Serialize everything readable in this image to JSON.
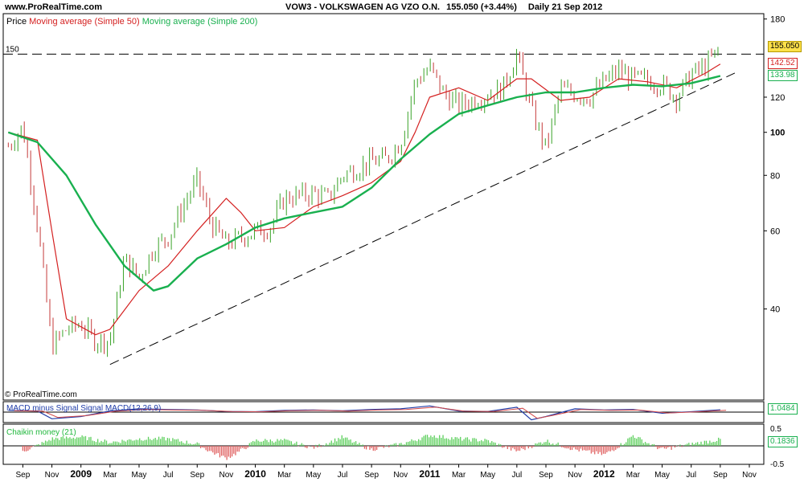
{
  "header": {
    "site": "www.ProRealTime.com",
    "title": "VOW3 - VOLKSWAGEN AG VZO O.N.",
    "change": "155.050 (+3.44%)",
    "period": "Daily  21 Sep 2012"
  },
  "legend": {
    "price": "Price",
    "ma50": "Moving average (Simple 50)",
    "ma200": "Moving average (Simple 200)"
  },
  "copyright": "© ProRealTime.com",
  "colors": {
    "ma50": "#d42020",
    "ma200": "#19b04f",
    "up": "#3aa329",
    "down": "#c43a3a",
    "macd": "#1f3ca8",
    "signal": "#d44a4a",
    "cm_pos": "#5ccf5c",
    "cm_neg": "#e06262"
  },
  "chart_data": [
    {
      "type": "line",
      "title": "VOW3 - VOLKSWAGEN AG VZO O.N.",
      "y_scale": "log",
      "ylim": [
        26,
        182
      ],
      "y_ticks": [
        "180",
        "150",
        "120",
        "100",
        "80",
        "60",
        "40"
      ],
      "x_ticks": [
        "Sep",
        "Nov",
        "2009",
        "Mar",
        "May",
        "Jul",
        "Sep",
        "Nov",
        "2010",
        "Mar",
        "May",
        "Jul",
        "Sep",
        "Nov",
        "2011",
        "Mar",
        "May",
        "Jul",
        "Sep",
        "Nov",
        "2012",
        "Mar",
        "May",
        "Jul",
        "Sep",
        "Nov"
      ],
      "x_range": [
        "2008-08",
        "2012-11"
      ],
      "series": [
        {
          "name": "Price",
          "style": "candles",
          "x": [
            "2008-08",
            "2008-09",
            "2008-10",
            "2008-11",
            "2008-12",
            "2009-01",
            "2009-02",
            "2009-03",
            "2009-04",
            "2009-05",
            "2009-06",
            "2009-07",
            "2009-08",
            "2009-09",
            "2009-10",
            "2009-11",
            "2009-12",
            "2010-01",
            "2010-02",
            "2010-03",
            "2010-04",
            "2010-05",
            "2010-06",
            "2010-07",
            "2010-08",
            "2010-09",
            "2010-10",
            "2010-11",
            "2010-12",
            "2011-01",
            "2011-02",
            "2011-03",
            "2011-04",
            "2011-05",
            "2011-06",
            "2011-07",
            "2011-08",
            "2011-09",
            "2011-10",
            "2011-11",
            "2011-12",
            "2012-01",
            "2012-02",
            "2012-03",
            "2012-04",
            "2012-05",
            "2012-06",
            "2012-07",
            "2012-08",
            "2012-09"
          ],
          "values": [
            93,
            103,
            62,
            33,
            36,
            37,
            34,
            34,
            52,
            47,
            55,
            58,
            68,
            78,
            62,
            56,
            58,
            60,
            61,
            71,
            72,
            73,
            71,
            80,
            83,
            86,
            87,
            95,
            130,
            140,
            122,
            115,
            118,
            122,
            125,
            150,
            112,
            92,
            125,
            122,
            120,
            130,
            138,
            132,
            131,
            128,
            120,
            135,
            141,
            155.05
          ]
        },
        {
          "name": "Moving average (Simple 50)",
          "x": [
            "2008-08",
            "2008-10",
            "2008-11",
            "2008-12",
            "2009-02",
            "2009-03",
            "2009-05",
            "2009-07",
            "2009-09",
            "2009-11",
            "2009-12",
            "2010-01",
            "2010-03",
            "2010-05",
            "2010-07",
            "2010-09",
            "2010-11",
            "2010-12",
            "2011-01",
            "2011-03",
            "2011-05",
            "2011-07",
            "2011-08",
            "2011-10",
            "2011-12",
            "2012-02",
            "2012-04",
            "2012-06",
            "2012-08",
            "2012-09"
          ],
          "values": [
            100,
            96,
            60,
            38,
            35,
            36,
            44,
            50,
            60,
            71,
            66,
            60,
            61,
            68,
            72,
            77,
            86,
            100,
            120,
            126,
            118,
            132,
            132,
            118,
            120,
            132,
            130,
            126,
            136,
            142.52
          ]
        },
        {
          "name": "Moving average (Simple 200)",
          "x": [
            "2008-08",
            "2008-10",
            "2008-12",
            "2009-02",
            "2009-04",
            "2009-06",
            "2009-07",
            "2009-09",
            "2009-11",
            "2010-01",
            "2010-03",
            "2010-05",
            "2010-07",
            "2010-09",
            "2010-11",
            "2011-01",
            "2011-03",
            "2011-05",
            "2011-07",
            "2011-09",
            "2011-11",
            "2012-01",
            "2012-03",
            "2012-05",
            "2012-07",
            "2012-09"
          ],
          "values": [
            100,
            95,
            80,
            62,
            50,
            44,
            45,
            52,
            56,
            61,
            64,
            66,
            68,
            75,
            87,
            99,
            110,
            115,
            120,
            123,
            123,
            126,
            128,
            127,
            129,
            133.98
          ]
        }
      ],
      "annotations": [
        {
          "type": "horizontal-line",
          "label": "150",
          "value": 150
        },
        {
          "type": "trendline",
          "from": [
            "2009-03",
            30
          ],
          "to": [
            "2012-10",
            136
          ]
        }
      ],
      "last_values": {
        "price": "155.050",
        "ma50": "142.52",
        "ma200": "133.98"
      }
    },
    {
      "type": "line",
      "title": "MACD minus Signal Signal MACD(12,26,9)",
      "series": [
        {
          "name": "MACD minus Signal Signal MACD(12,26,9)",
          "x": [
            "2008-08",
            "2008-10",
            "2008-11",
            "2009-01",
            "2009-03",
            "2009-05",
            "2009-07",
            "2009-09",
            "2009-11",
            "2010-01",
            "2010-03",
            "2010-05",
            "2010-07",
            "2010-09",
            "2010-11",
            "2011-01",
            "2011-03",
            "2011-05",
            "2011-07",
            "2011-08",
            "2011-09",
            "2011-11",
            "2012-01",
            "2012-03",
            "2012-05",
            "2012-07",
            "2012-09"
          ],
          "values": [
            0.8,
            0.5,
            -3.0,
            -2.0,
            0.5,
            1.5,
            1.2,
            1.0,
            0.3,
            0.2,
            0.8,
            1.0,
            0.6,
            1.2,
            1.5,
            2.8,
            0.5,
            0.3,
            2.2,
            -3.5,
            -2.0,
            1.5,
            1.0,
            1.2,
            -0.5,
            0.2,
            1.05
          ]
        }
      ],
      "last_value": "1.0484"
    },
    {
      "type": "area",
      "title": "Chaikin money (21)",
      "ylim": [
        -0.5,
        0.5
      ],
      "y_ticks": [
        "0.5",
        "-0.5"
      ],
      "series": [
        {
          "name": "Chaikin money (21)",
          "x": [
            "2008-09",
            "2008-11",
            "2009-01",
            "2009-03",
            "2009-05",
            "2009-07",
            "2009-09",
            "2009-11",
            "2010-01",
            "2010-03",
            "2010-05",
            "2010-07",
            "2010-09",
            "2010-11",
            "2011-01",
            "2011-03",
            "2011-05",
            "2011-07",
            "2011-09",
            "2011-11",
            "2012-01",
            "2012-03",
            "2012-05",
            "2012-07",
            "2012-09"
          ],
          "values": [
            -0.15,
            0.2,
            0.25,
            0.1,
            0.2,
            0.2,
            0.05,
            -0.35,
            0.15,
            0.15,
            -0.05,
            0.25,
            -0.1,
            0.05,
            0.3,
            0.2,
            0.15,
            -0.15,
            0.15,
            -0.1,
            -0.25,
            0.3,
            -0.1,
            0.05,
            0.18
          ]
        }
      ],
      "last_value": "0.1836"
    }
  ]
}
